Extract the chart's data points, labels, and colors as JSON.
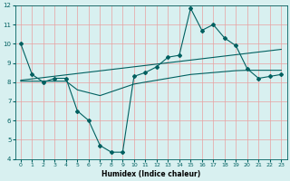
{
  "title": "",
  "xlabel": "Humidex (Indice chaleur)",
  "xlim": [
    -0.5,
    23.5
  ],
  "ylim": [
    4,
    12
  ],
  "yticks": [
    4,
    5,
    6,
    7,
    8,
    9,
    10,
    11,
    12
  ],
  "xticks": [
    0,
    1,
    2,
    3,
    4,
    5,
    6,
    7,
    8,
    9,
    10,
    11,
    12,
    13,
    14,
    15,
    16,
    17,
    18,
    19,
    20,
    21,
    22,
    23
  ],
  "background_color": "#d8f0f0",
  "grid_color": "#e8a0a0",
  "line_color": "#006060",
  "tick_color": "#006060",
  "line1_x": [
    0,
    1,
    2,
    3,
    4,
    5,
    6,
    7,
    8,
    9,
    10,
    11,
    12,
    13,
    14,
    15,
    16,
    17,
    18,
    19,
    20,
    21,
    22,
    23
  ],
  "line1_y": [
    10.0,
    8.4,
    8.0,
    8.2,
    8.2,
    6.5,
    6.0,
    4.7,
    4.35,
    4.35,
    8.3,
    8.5,
    8.8,
    9.3,
    9.4,
    11.85,
    10.7,
    11.0,
    10.3,
    9.9,
    8.7,
    8.2,
    8.3,
    8.4
  ],
  "line2_x": [
    0,
    1,
    2,
    3,
    4,
    5,
    6,
    7,
    8,
    9,
    10,
    11,
    12,
    13,
    14,
    15,
    16,
    17,
    18,
    19,
    20,
    21,
    22,
    23
  ],
  "line2_y": [
    8.1,
    8.17,
    8.24,
    8.31,
    8.38,
    8.45,
    8.52,
    8.59,
    8.66,
    8.73,
    8.8,
    8.87,
    8.94,
    9.01,
    9.08,
    9.15,
    9.22,
    9.29,
    9.36,
    9.43,
    9.5,
    9.57,
    9.64,
    9.71
  ],
  "line3_x": [
    0,
    1,
    2,
    3,
    4,
    5,
    6,
    7,
    8,
    9,
    10,
    11,
    12,
    13,
    14,
    15,
    16,
    17,
    18,
    19,
    20,
    21,
    22,
    23
  ],
  "line3_y": [
    8.05,
    8.05,
    8.05,
    8.05,
    8.05,
    7.6,
    7.45,
    7.3,
    7.5,
    7.7,
    7.9,
    8.0,
    8.1,
    8.2,
    8.3,
    8.4,
    8.45,
    8.5,
    8.55,
    8.6,
    8.62,
    8.62,
    8.62,
    8.62
  ]
}
